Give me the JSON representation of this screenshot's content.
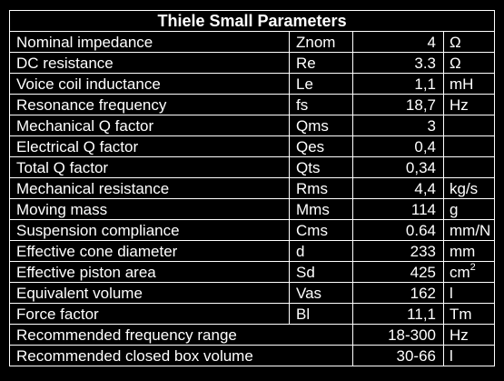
{
  "title": "Thiele Small Parameters",
  "rows": [
    {
      "name": "Nominal impedance",
      "symbol": "Znom",
      "value": "4",
      "unit": "Ω"
    },
    {
      "name": "DC resistance",
      "symbol": "Re",
      "value": "3.3",
      "unit": "Ω"
    },
    {
      "name": "Voice coil inductance",
      "symbol": "Le",
      "value": "1,1",
      "unit": "mH"
    },
    {
      "name": "Resonance frequency",
      "symbol": "fs",
      "value": "18,7",
      "unit": "Hz"
    },
    {
      "name": "Mechanical Q factor",
      "symbol": "Qms",
      "value": "3",
      "unit": ""
    },
    {
      "name": "Electrical Q factor",
      "symbol": "Qes",
      "value": "0,4",
      "unit": ""
    },
    {
      "name": "Total Q factor",
      "symbol": "Qts",
      "value": "0,34",
      "unit": ""
    },
    {
      "name": "Mechanical resistance",
      "symbol": "Rms",
      "value": "4,4",
      "unit": "kg/s"
    },
    {
      "name": "Moving mass",
      "symbol": "Mms",
      "value": "114",
      "unit": "g"
    },
    {
      "name": "Suspension compliance",
      "symbol": "Cms",
      "value": "0.64",
      "unit": "mm/N"
    },
    {
      "name": "Effective cone diameter",
      "symbol": "d",
      "value": "233",
      "unit": "mm"
    },
    {
      "name": "Effective piston area",
      "symbol": "Sd",
      "value": "425",
      "unit": "cm",
      "unit_sup": "2"
    },
    {
      "name": "Equivalent volume",
      "symbol": "Vas",
      "value": "162",
      "unit": "l"
    },
    {
      "name": "Force factor",
      "symbol": "Bl",
      "value": "11,1",
      "unit": "Tm"
    }
  ],
  "span_rows": [
    {
      "name": "Recommended frequency range",
      "value": "18-300",
      "unit": "Hz"
    },
    {
      "name": "Recommended closed box volume",
      "value": "30-66",
      "unit": "l"
    }
  ]
}
